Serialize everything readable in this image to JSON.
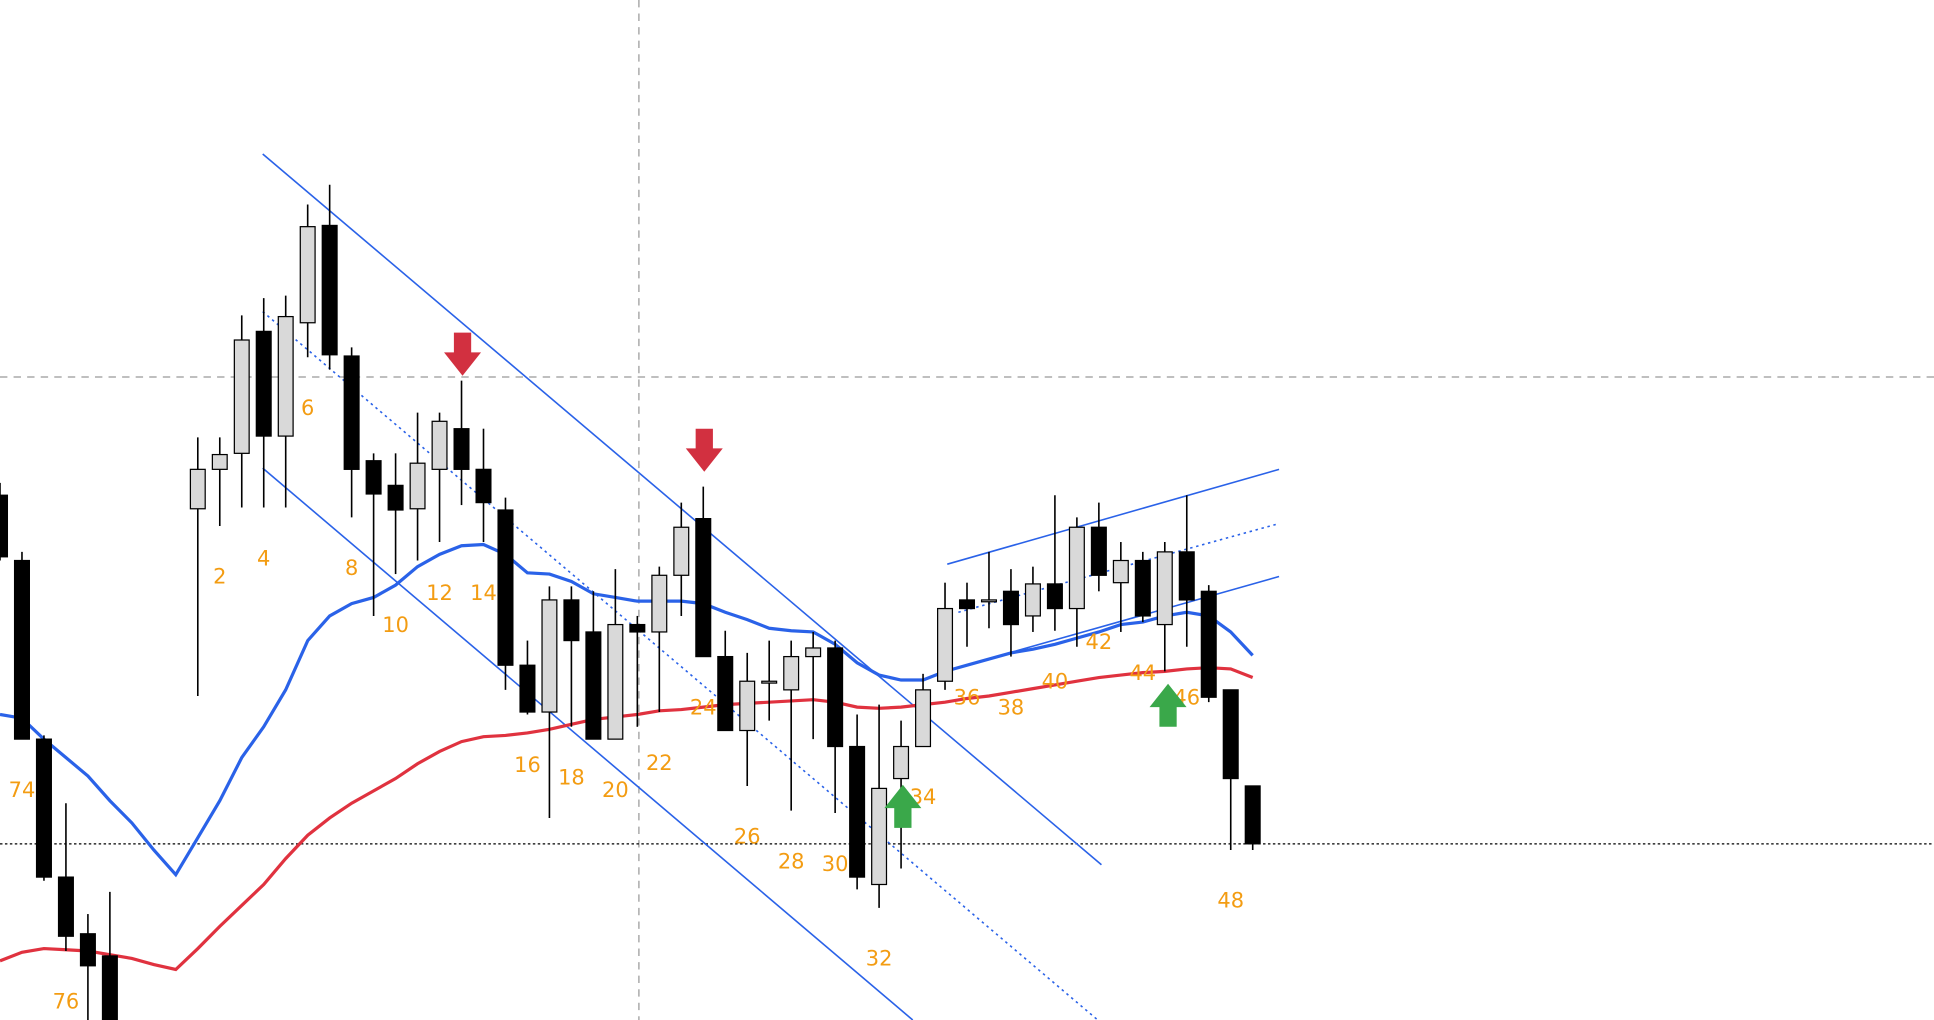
{
  "chart_data": {
    "type": "candlestick",
    "xlim": [
      -8,
      80
    ],
    "ylim": [
      0,
      828
    ],
    "up_color": "#d9d9d9",
    "down_color": "#000000",
    "label_color": "#f39c12",
    "candles": {
      "x": [
        -8,
        -7,
        -6,
        -5,
        -4,
        -3,
        1,
        2,
        3,
        4,
        5,
        6,
        7,
        8,
        9,
        10,
        11,
        12,
        13,
        14,
        15,
        16,
        17,
        18,
        19,
        20,
        21,
        22,
        23,
        24,
        25,
        26,
        27,
        28,
        29,
        30,
        31,
        32,
        33,
        34,
        35,
        36,
        37,
        38,
        39,
        40,
        41,
        42,
        43,
        44,
        45,
        46,
        47,
        48,
        49
      ],
      "open": [
        426,
        373,
        228,
        116,
        70,
        52,
        415,
        447,
        460,
        559,
        474,
        566,
        645,
        539,
        454,
        434,
        415,
        447,
        480,
        447,
        414,
        288,
        250,
        341,
        315,
        228,
        321,
        315,
        361,
        407,
        295,
        235,
        275,
        268,
        295,
        302,
        222,
        110,
        196,
        222,
        275,
        341,
        341,
        348,
        328,
        354,
        334,
        400,
        355,
        373,
        321,
        380,
        348,
        268,
        190
      ],
      "high": [
        436,
        380,
        231,
        176,
        86,
        104,
        473,
        473,
        572,
        586,
        588,
        662,
        678,
        546,
        460,
        460,
        493,
        493,
        519,
        480,
        424,
        308,
        352,
        352,
        348,
        366,
        328,
        368,
        420,
        433,
        316,
        298,
        308,
        308,
        315,
        308,
        248,
        256,
        243,
        281,
        355,
        355,
        380,
        366,
        368,
        426,
        408,
        420,
        388,
        380,
        388,
        426,
        353,
        268,
        190
      ],
      "low": [
        373,
        228,
        113,
        56,
        0,
        0,
        263,
        401,
        416,
        416,
        416,
        538,
        528,
        408,
        328,
        362,
        373,
        388,
        418,
        388,
        268,
        248,
        164,
        238,
        228,
        228,
        238,
        250,
        328,
        295,
        235,
        190,
        243,
        170,
        228,
        168,
        106,
        91,
        123,
        222,
        268,
        303,
        318,
        295,
        315,
        316,
        303,
        348,
        315,
        323,
        283,
        303,
        258,
        138,
        138
      ],
      "close": [
        376,
        228,
        116,
        68,
        44,
        0,
        447,
        459,
        552,
        474,
        571,
        644,
        540,
        447,
        427,
        414,
        452,
        486,
        447,
        420,
        288,
        250,
        341,
        308,
        228,
        321,
        315,
        361,
        400,
        295,
        235,
        275,
        275,
        295,
        302,
        222,
        116,
        188,
        222,
        268,
        334,
        334,
        341,
        321,
        354,
        334,
        400,
        361,
        373,
        328,
        380,
        341,
        262,
        196,
        143
      ]
    },
    "series": [
      {
        "color": "#2a62e8",
        "x": [
          -8,
          -7,
          -6,
          -5,
          -4,
          -3,
          -2,
          -1,
          0,
          1,
          2,
          3,
          4,
          5,
          6,
          7,
          8,
          9,
          10,
          11,
          12,
          13,
          14,
          15,
          16,
          17,
          18,
          19,
          20,
          21,
          22,
          23,
          24,
          25,
          26,
          27,
          28,
          29,
          30,
          31,
          32,
          33,
          34,
          35,
          36,
          37,
          38,
          39,
          40,
          41,
          42,
          43,
          44,
          45,
          46,
          47,
          48,
          49
        ],
        "values": [
          248,
          245,
          228,
          213,
          198,
          178,
          160,
          138,
          118,
          148,
          178,
          213,
          238,
          268,
          308,
          328,
          338,
          343,
          353,
          368,
          378,
          385,
          386,
          378,
          363,
          362,
          356,
          346,
          343,
          340,
          340,
          340,
          338,
          331,
          325,
          318,
          316,
          315,
          305,
          290,
          280,
          276,
          276,
          283,
          288,
          293,
          298,
          301,
          305,
          310,
          315,
          321,
          323,
          328,
          331,
          328,
          315,
          296
        ]
      },
      {
        "color": "#e0323f",
        "x": [
          -8,
          -7,
          -6,
          -5,
          -4,
          -3,
          -2,
          -1,
          0,
          1,
          2,
          3,
          4,
          5,
          6,
          7,
          8,
          9,
          10,
          11,
          12,
          13,
          14,
          15,
          16,
          17,
          18,
          19,
          20,
          21,
          22,
          23,
          24,
          25,
          26,
          27,
          28,
          29,
          30,
          31,
          32,
          33,
          34,
          35,
          36,
          37,
          38,
          39,
          40,
          41,
          42,
          43,
          44,
          45,
          46,
          47,
          48,
          49
        ],
        "values": [
          48,
          55,
          58,
          57,
          56,
          53,
          50,
          45,
          41,
          58,
          76,
          93,
          110,
          131,
          150,
          164,
          176,
          186,
          196,
          208,
          218,
          226,
          230,
          231,
          233,
          236,
          240,
          244,
          246,
          248,
          251,
          252,
          254,
          256,
          257,
          258,
          259,
          260,
          258,
          254,
          253,
          254,
          256,
          258,
          261,
          263,
          266,
          269,
          272,
          275,
          278,
          280,
          282,
          283,
          285,
          286,
          285,
          278
        ]
      }
    ],
    "bar_labels": {
      "x": [
        -7,
        -5,
        2,
        4,
        6,
        8,
        10,
        12,
        14,
        16,
        18,
        20,
        22,
        24,
        26,
        28,
        30,
        32,
        34,
        36,
        38,
        40,
        42,
        44,
        46,
        48
      ],
      "labels": [
        74,
        76,
        2,
        4,
        6,
        8,
        10,
        12,
        14,
        16,
        18,
        20,
        22,
        24,
        26,
        28,
        30,
        32,
        34,
        36,
        38,
        40,
        42,
        44,
        46,
        48
      ]
    }
  }
}
